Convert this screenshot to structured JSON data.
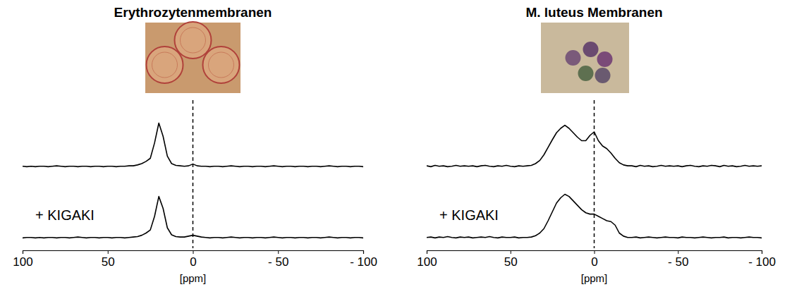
{
  "chart_data": [
    {
      "type": "line",
      "title": "Erythrozytenmembranen",
      "x_label": "[ppm]",
      "xlim": [
        100,
        -100
      ],
      "xticks": [
        100,
        50,
        0,
        {
          "value": -50,
          "label": "- 50"
        },
        {
          "value": -100,
          "label": "- 100"
        }
      ],
      "ylim": [
        0,
        1.6
      ],
      "tick_labels": "x",
      "grid": false,
      "vline": 0,
      "x": [
        100,
        97.5,
        95,
        92.5,
        90,
        87.5,
        85,
        82.5,
        80,
        77.5,
        75,
        72.5,
        70,
        67.5,
        65,
        62.5,
        60,
        57.5,
        55,
        52.5,
        50,
        47.5,
        45,
        42.5,
        40,
        37.5,
        35,
        32.5,
        30,
        27.5,
        25,
        22.5,
        20,
        17.5,
        15,
        12.5,
        10,
        7.5,
        5,
        2.5,
        0,
        -2.5,
        -5,
        -7.5,
        -10,
        -12.5,
        -15,
        -17.5,
        -20,
        -22.5,
        -25,
        -27.5,
        -30,
        -32.5,
        -35,
        -37.5,
        -40,
        -42.5,
        -45,
        -47.5,
        -50,
        -52.5,
        -55,
        -57.5,
        -60,
        -62.5,
        -65,
        -67.5,
        -70,
        -72.5,
        -75,
        -77.5,
        -80,
        -82.5,
        -85,
        -87.5,
        -90,
        -92.5,
        -95,
        -97.5,
        -100
      ],
      "series": [
        {
          "color": "#000000",
          "values": [
            0.02,
            0.01,
            0.02,
            0.01,
            0.02,
            0.02,
            0.01,
            0.02,
            0.03,
            0.02,
            0.01,
            0.02,
            0.02,
            0.01,
            0.02,
            0.02,
            0.01,
            0.02,
            0.02,
            0.01,
            0.02,
            0.02,
            0.01,
            0.02,
            0.02,
            0.03,
            0.03,
            0.05,
            0.08,
            0.13,
            0.2,
            0.55,
            1.0,
            0.7,
            0.25,
            0.08,
            0.04,
            0.03,
            0.02,
            0.03,
            0.07,
            0.03,
            0.02,
            0.02,
            0.01,
            0.02,
            0.02,
            0.01,
            0.02,
            0.03,
            0.02,
            0.01,
            0.02,
            0.02,
            0.01,
            0.02,
            0.02,
            0.01,
            0.02,
            0.03,
            0.02,
            0.01,
            0.02,
            0.02,
            0.01,
            0.02,
            0.02,
            0.01,
            0.02,
            0.02,
            0.01,
            0.02,
            0.03,
            0.02,
            0.01,
            0.02,
            0.02,
            0.01,
            0.02,
            0.02,
            0.01
          ]
        },
        {
          "name": "+ KIGAKI",
          "color": "#000000",
          "values": [
            0.01,
            0.02,
            0.02,
            0.01,
            0.02,
            0.01,
            0.02,
            0.02,
            0.01,
            0.02,
            0.02,
            0.01,
            0.02,
            0.03,
            0.02,
            0.01,
            0.02,
            0.02,
            0.01,
            0.02,
            0.02,
            0.01,
            0.02,
            0.02,
            0.01,
            0.02,
            0.03,
            0.04,
            0.07,
            0.12,
            0.19,
            0.5,
            0.95,
            0.68,
            0.24,
            0.08,
            0.04,
            0.03,
            0.03,
            0.05,
            0.07,
            0.05,
            0.03,
            0.02,
            0.01,
            0.02,
            0.02,
            0.01,
            0.02,
            0.03,
            0.02,
            0.01,
            0.02,
            0.02,
            0.01,
            0.02,
            0.02,
            0.01,
            0.02,
            0.03,
            0.02,
            0.01,
            0.02,
            0.02,
            0.01,
            0.02,
            0.02,
            0.01,
            0.02,
            0.02,
            0.01,
            0.02,
            0.03,
            0.02,
            0.01,
            0.02,
            0.02,
            0.01,
            0.02,
            0.02,
            0.01
          ]
        }
      ]
    },
    {
      "type": "line",
      "title": "M. luteus Membranen",
      "x_label": "[ppm]",
      "xlim": [
        100,
        -100
      ],
      "xticks": [
        100,
        50,
        0,
        {
          "value": -50,
          "label": "- 50"
        },
        {
          "value": -100,
          "label": "- 100"
        }
      ],
      "ylim": [
        0,
        1.6
      ],
      "tick_labels": "x",
      "grid": false,
      "vline": 0,
      "x": [
        100,
        97.5,
        95,
        92.5,
        90,
        87.5,
        85,
        82.5,
        80,
        77.5,
        75,
        72.5,
        70,
        67.5,
        65,
        62.5,
        60,
        57.5,
        55,
        52.5,
        50,
        47.5,
        45,
        42.5,
        40,
        37.5,
        35,
        32.5,
        30,
        27.5,
        25,
        22.5,
        20,
        17.5,
        15,
        12.5,
        10,
        7.5,
        5,
        2.5,
        0,
        -2.5,
        -5,
        -7.5,
        -10,
        -12.5,
        -15,
        -17.5,
        -20,
        -22.5,
        -25,
        -27.5,
        -30,
        -32.5,
        -35,
        -37.5,
        -40,
        -42.5,
        -45,
        -47.5,
        -50,
        -52.5,
        -55,
        -57.5,
        -60,
        -62.5,
        -65,
        -67.5,
        -70,
        -72.5,
        -75,
        -77.5,
        -80,
        -82.5,
        -85,
        -87.5,
        -90,
        -92.5,
        -95,
        -97.5,
        -100
      ],
      "series": [
        {
          "color": "#000000",
          "values": [
            0.03,
            0.01,
            0.04,
            0.02,
            0.03,
            0.01,
            0.02,
            0.04,
            0.02,
            0.03,
            0.02,
            0.03,
            0.01,
            0.03,
            0.04,
            0.02,
            0.01,
            0.03,
            0.02,
            0.04,
            0.02,
            0.01,
            0.03,
            0.02,
            0.03,
            0.04,
            0.08,
            0.15,
            0.28,
            0.45,
            0.62,
            0.78,
            0.88,
            0.95,
            0.88,
            0.78,
            0.68,
            0.6,
            0.6,
            0.72,
            0.8,
            0.6,
            0.48,
            0.42,
            0.32,
            0.2,
            0.1,
            0.05,
            0.03,
            0.03,
            0.01,
            0.04,
            0.02,
            0.03,
            0.01,
            0.02,
            0.04,
            0.02,
            0.03,
            0.02,
            0.03,
            0.01,
            0.03,
            0.04,
            0.02,
            0.01,
            0.03,
            0.02,
            0.04,
            0.03,
            0.01,
            0.04,
            0.02,
            0.03,
            0.01,
            0.02,
            0.04,
            0.02,
            0.03,
            0.02,
            0.03
          ]
        },
        {
          "name": "+ KIGAKI",
          "color": "#000000",
          "values": [
            0.02,
            0.03,
            0.01,
            0.03,
            0.02,
            0.04,
            0.02,
            0.01,
            0.03,
            0.02,
            0.03,
            0.01,
            0.02,
            0.03,
            0.02,
            0.04,
            0.02,
            0.01,
            0.03,
            0.02,
            0.02,
            0.03,
            0.01,
            0.02,
            0.02,
            0.03,
            0.06,
            0.12,
            0.22,
            0.4,
            0.6,
            0.8,
            0.92,
            1.0,
            0.95,
            0.85,
            0.75,
            0.65,
            0.58,
            0.55,
            0.55,
            0.5,
            0.45,
            0.4,
            0.38,
            0.3,
            0.12,
            0.05,
            0.02,
            0.02,
            0.03,
            0.01,
            0.02,
            0.03,
            0.02,
            0.01,
            0.02,
            0.03,
            0.02,
            0.02,
            0.01,
            0.03,
            0.02,
            0.02,
            0.01,
            0.02,
            0.03,
            0.02,
            0.01,
            0.02,
            0.02,
            0.03,
            0.01,
            0.02,
            0.02,
            0.01,
            0.02,
            0.03,
            0.02,
            0.02,
            0.01
          ]
        }
      ]
    }
  ]
}
